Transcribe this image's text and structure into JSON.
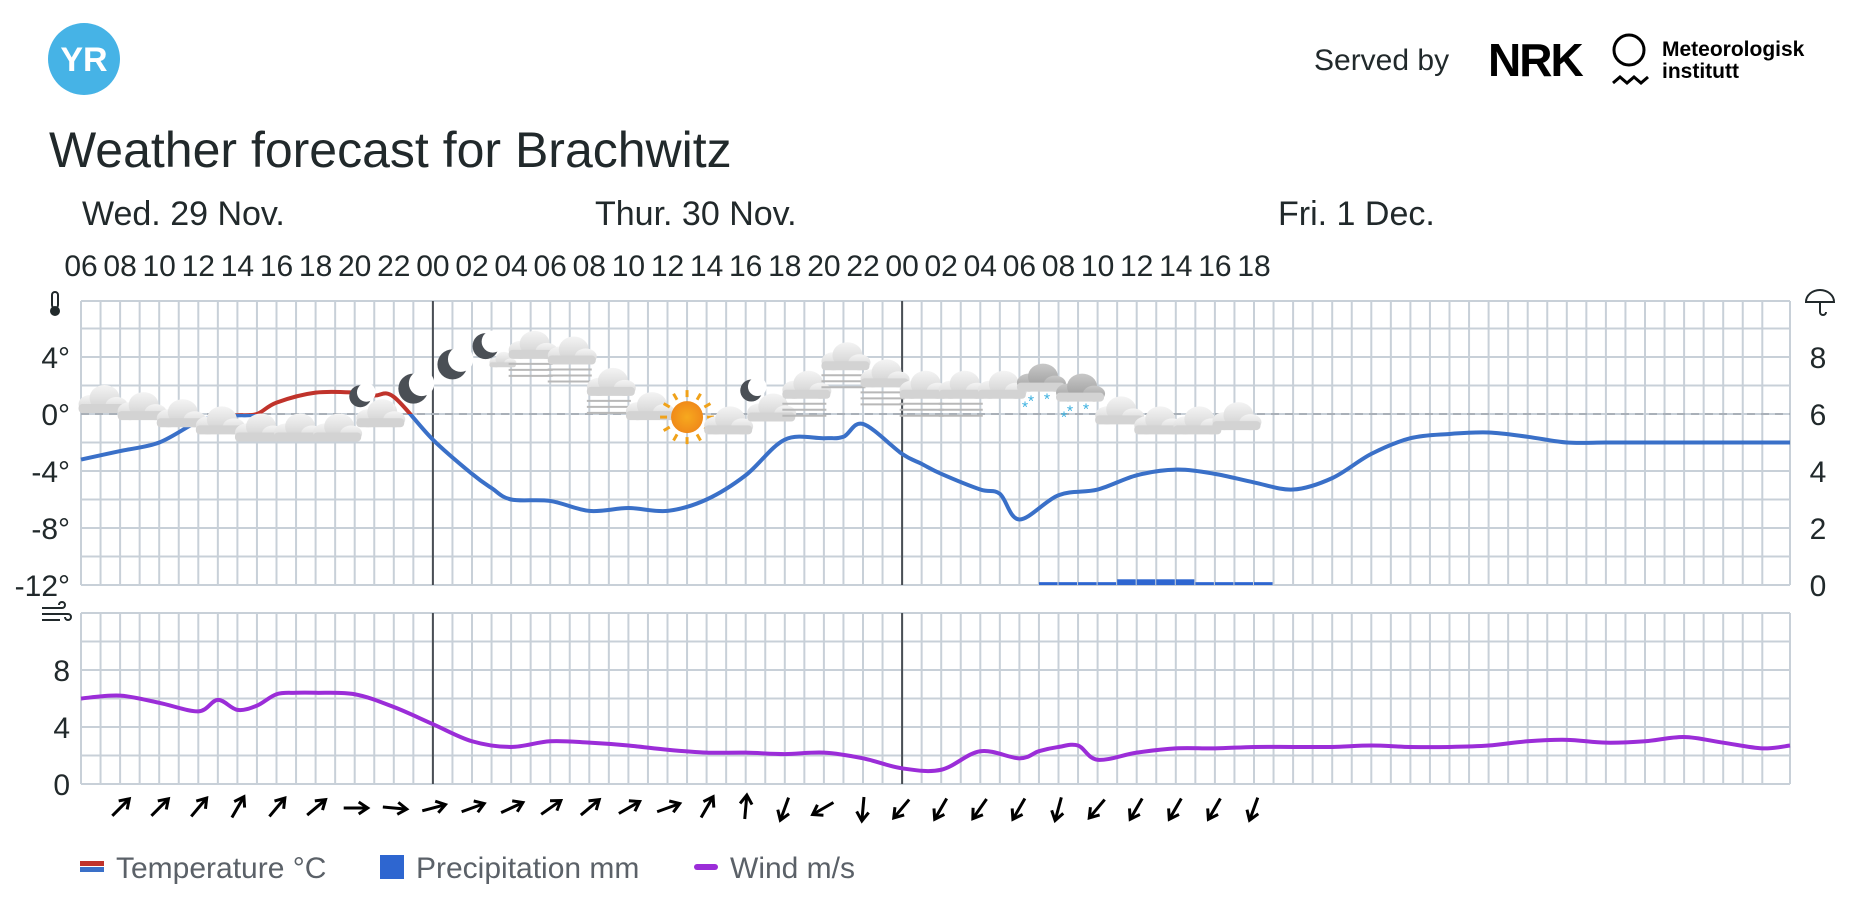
{
  "header": {
    "logo_text": "YR",
    "served_by": "Served by",
    "nrk_logo": "NRK",
    "met_logo_line1": "Meteorologisk",
    "met_logo_line2": "institutt"
  },
  "title": "Weather forecast for Brachwitz",
  "days": [
    "Wed. 29 Nov.",
    "Thur. 30 Nov.",
    "Fri. 1 Dec."
  ],
  "hour_labels": [
    "06",
    "08",
    "10",
    "12",
    "14",
    "16",
    "18",
    "20",
    "22",
    "00",
    "02",
    "04",
    "06",
    "08",
    "10",
    "12",
    "14",
    "16",
    "18",
    "20",
    "22",
    "00",
    "02",
    "04",
    "06",
    "08",
    "10",
    "12",
    "14",
    "16",
    "18"
  ],
  "icons": {
    "thermometer": "thermometer-icon",
    "umbrella": "umbrella-icon",
    "wind": "wind-icon"
  },
  "colors": {
    "temp_above_zero": "#c0332b",
    "temp_below_zero": "#3a70c8",
    "precipitation": "#2e66d0",
    "wind": "#9b2dd8",
    "grid": "#c8d0d8",
    "logo_blue": "#46b3e6",
    "snow": "#3ab0e0"
  },
  "legend": [
    {
      "label": "Temperature °C",
      "kind": "temperature"
    },
    {
      "label": "Precipitation mm",
      "kind": "precipitation"
    },
    {
      "label": "Wind m/s",
      "kind": "wind"
    }
  ],
  "chart_data": [
    {
      "type": "line",
      "name_key": "temperature",
      "x_unit": "hours from Wed 29 Nov 06:00",
      "x": [
        0,
        2,
        4,
        6,
        7,
        8,
        9,
        10,
        12,
        14,
        15,
        16,
        18,
        20,
        21,
        22,
        24,
        26,
        28,
        30,
        32,
        34,
        36,
        38,
        39,
        40,
        42,
        43,
        44,
        46,
        47,
        48,
        50,
        52,
        54,
        56,
        58,
        60,
        62,
        64,
        66,
        68,
        70,
        72,
        74,
        76,
        78,
        80,
        82,
        84,
        86,
        88
      ],
      "values": [
        -3.2,
        -2.6,
        -2.0,
        -0.5,
        -0.2,
        -0.1,
        0.0,
        0.8,
        1.5,
        1.5,
        1.3,
        1.2,
        -1.8,
        -4.2,
        -5.2,
        -6.0,
        -6.1,
        -6.8,
        -6.6,
        -6.8,
        -6.0,
        -4.3,
        -1.8,
        -1.7,
        -1.6,
        -0.7,
        -2.8,
        -3.5,
        -4.2,
        -5.3,
        -5.6,
        -7.4,
        -5.7,
        -5.3,
        -4.3,
        -3.9,
        -4.2,
        -4.8,
        -5.3,
        -4.5,
        -2.8,
        -1.7,
        -1.4,
        -1.3,
        -1.6,
        -2.0,
        -2.0,
        -2.0,
        -2.0,
        -2.0,
        -2.0,
        -2.0
      ],
      "ylim": [
        -12,
        8
      ],
      "yticks": [
        "4°",
        "0°",
        "-4°",
        "-8°",
        "-12°"
      ],
      "ytick_values": [
        4,
        0,
        -4,
        -8,
        -12
      ],
      "right_yticks": [
        "8",
        "6",
        "4",
        "2",
        "0"
      ],
      "right_ytick_values": [
        8,
        6,
        4,
        2,
        0
      ]
    },
    {
      "type": "bar",
      "name_key": "precipitation",
      "x_unit": "hours from Wed 29 Nov 06:00",
      "x": [
        49,
        50,
        51,
        52,
        53,
        54,
        55,
        56,
        57,
        58,
        59,
        60
      ],
      "values": [
        0.1,
        0.1,
        0.1,
        0.1,
        0.2,
        0.2,
        0.2,
        0.2,
        0.1,
        0.1,
        0.1,
        0.1
      ],
      "ylim": [
        0,
        10
      ]
    },
    {
      "type": "line",
      "name_key": "wind",
      "x_unit": "hours from Wed 29 Nov 06:00",
      "x": [
        0,
        2,
        4,
        6,
        7,
        8,
        9,
        10,
        11,
        12,
        14,
        16,
        18,
        20,
        22,
        24,
        26,
        28,
        30,
        32,
        34,
        36,
        38,
        40,
        42,
        44,
        46,
        48,
        49,
        50,
        51,
        52,
        54,
        56,
        58,
        60,
        62,
        64,
        66,
        68,
        70,
        72,
        74,
        76,
        78,
        80,
        82,
        84,
        86,
        88
      ],
      "values": [
        6.0,
        6.2,
        5.7,
        5.1,
        5.9,
        5.2,
        5.5,
        6.3,
        6.4,
        6.4,
        6.3,
        5.4,
        4.2,
        3.0,
        2.6,
        3.0,
        2.9,
        2.7,
        2.4,
        2.2,
        2.2,
        2.1,
        2.2,
        1.8,
        1.1,
        1.0,
        2.3,
        1.8,
        2.3,
        2.6,
        2.7,
        1.7,
        2.2,
        2.5,
        2.5,
        2.6,
        2.6,
        2.6,
        2.7,
        2.6,
        2.6,
        2.7,
        3.0,
        3.1,
        2.9,
        3.0,
        3.3,
        2.9,
        2.5,
        2.7
      ],
      "ylim": [
        0,
        12
      ],
      "yticks": [
        "8",
        "4",
        "0"
      ],
      "ytick_values": [
        8,
        4,
        0
      ]
    }
  ],
  "weather_icons": [
    {
      "hour": 1,
      "type": "cloud",
      "dy": 0
    },
    {
      "hour": 3,
      "type": "cloud",
      "dy": -0.5
    },
    {
      "hour": 5,
      "type": "cloud",
      "dy": -1
    },
    {
      "hour": 7,
      "type": "cloud",
      "dy": -1.5
    },
    {
      "hour": 9,
      "type": "cloud",
      "dy": -2
    },
    {
      "hour": 11,
      "type": "cloud",
      "dy": -2
    },
    {
      "hour": 13,
      "type": "cloud",
      "dy": -2
    },
    {
      "hour": 15,
      "type": "moon-cloud",
      "dy": -1
    },
    {
      "hour": 17,
      "type": "moon",
      "dy": 0.8
    },
    {
      "hour": 19,
      "type": "moon",
      "dy": 2.5
    },
    {
      "hour": 21,
      "type": "moon-cloud-small",
      "dy": 3.5
    },
    {
      "hour": 23,
      "type": "cloud-fog",
      "dy": 3.8
    },
    {
      "hour": 25,
      "type": "cloud-fog",
      "dy": 3.4
    },
    {
      "hour": 27,
      "type": "cloud-fog",
      "dy": 1.2
    },
    {
      "hour": 29,
      "type": "cloud",
      "dy": -0.5
    },
    {
      "hour": 31,
      "type": "sun",
      "dy": -1.2
    },
    {
      "hour": 33,
      "type": "cloud",
      "dy": -1.5
    },
    {
      "hour": 35,
      "type": "moon-cloud",
      "dy": -0.6
    },
    {
      "hour": 37,
      "type": "cloud-fog",
      "dy": 1.0
    },
    {
      "hour": 39,
      "type": "cloud-fog",
      "dy": 3.0
    },
    {
      "hour": 41,
      "type": "cloud-fog",
      "dy": 1.8
    },
    {
      "hour": 43,
      "type": "cloud-fog",
      "dy": 1.0
    },
    {
      "hour": 45,
      "type": "cloud-fog",
      "dy": 1.0
    },
    {
      "hour": 47,
      "type": "cloud",
      "dy": 1.0
    },
    {
      "hour": 49,
      "type": "cloud-snow",
      "dy": 1.5
    },
    {
      "hour": 51,
      "type": "cloud-snow",
      "dy": 0.8
    },
    {
      "hour": 53,
      "type": "cloud",
      "dy": -0.8
    },
    {
      "hour": 55,
      "type": "cloud",
      "dy": -1.5
    },
    {
      "hour": 57,
      "type": "cloud",
      "dy": -1.5
    },
    {
      "hour": 59,
      "type": "cloud",
      "dy": -1.2
    }
  ],
  "wind_arrows_deg": [
    45,
    45,
    40,
    30,
    40,
    50,
    90,
    95,
    75,
    70,
    65,
    55,
    50,
    60,
    70,
    30,
    5,
    200,
    240,
    185,
    220,
    210,
    215,
    210,
    195,
    220,
    210,
    210,
    210,
    200
  ]
}
